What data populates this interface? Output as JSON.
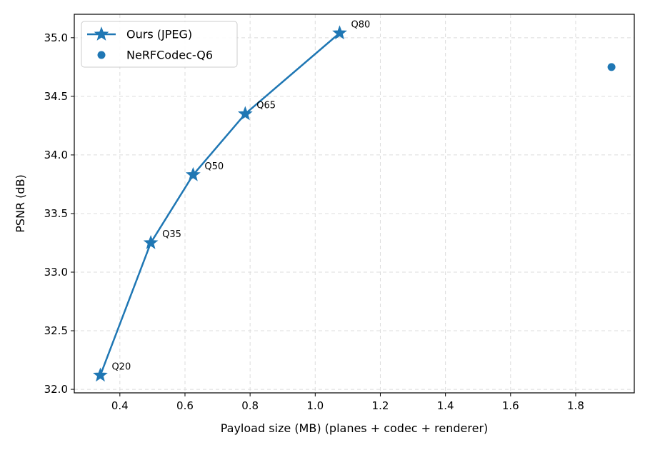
{
  "chart_data": {
    "type": "line",
    "xlabel": "Payload size (MB) (planes + codec + renderer)",
    "ylabel": "PSNR (dB)",
    "xlim": [
      0.26,
      1.98
    ],
    "ylim": [
      31.97,
      35.2
    ],
    "xticks": [
      0.4,
      0.6,
      0.8,
      1.0,
      1.2,
      1.4,
      1.6,
      1.8
    ],
    "yticks": [
      32.0,
      32.5,
      33.0,
      33.5,
      34.0,
      34.5,
      35.0
    ],
    "grid": true,
    "legend_position": "top-left",
    "series": [
      {
        "name": "Ours (JPEG)",
        "color": "#1f77b4",
        "marker": "star",
        "line": true,
        "x": [
          0.34,
          0.495,
          0.625,
          0.785,
          1.075
        ],
        "y": [
          32.12,
          33.25,
          33.83,
          34.35,
          35.04
        ],
        "labels": [
          "Q20",
          "Q35",
          "Q50",
          "Q65",
          "Q80"
        ]
      },
      {
        "name": "NeRFCodec-Q6",
        "color": "#1f77b4",
        "marker": "circle",
        "line": false,
        "x": [
          1.91
        ],
        "y": [
          34.75
        ],
        "labels": []
      }
    ]
  }
}
